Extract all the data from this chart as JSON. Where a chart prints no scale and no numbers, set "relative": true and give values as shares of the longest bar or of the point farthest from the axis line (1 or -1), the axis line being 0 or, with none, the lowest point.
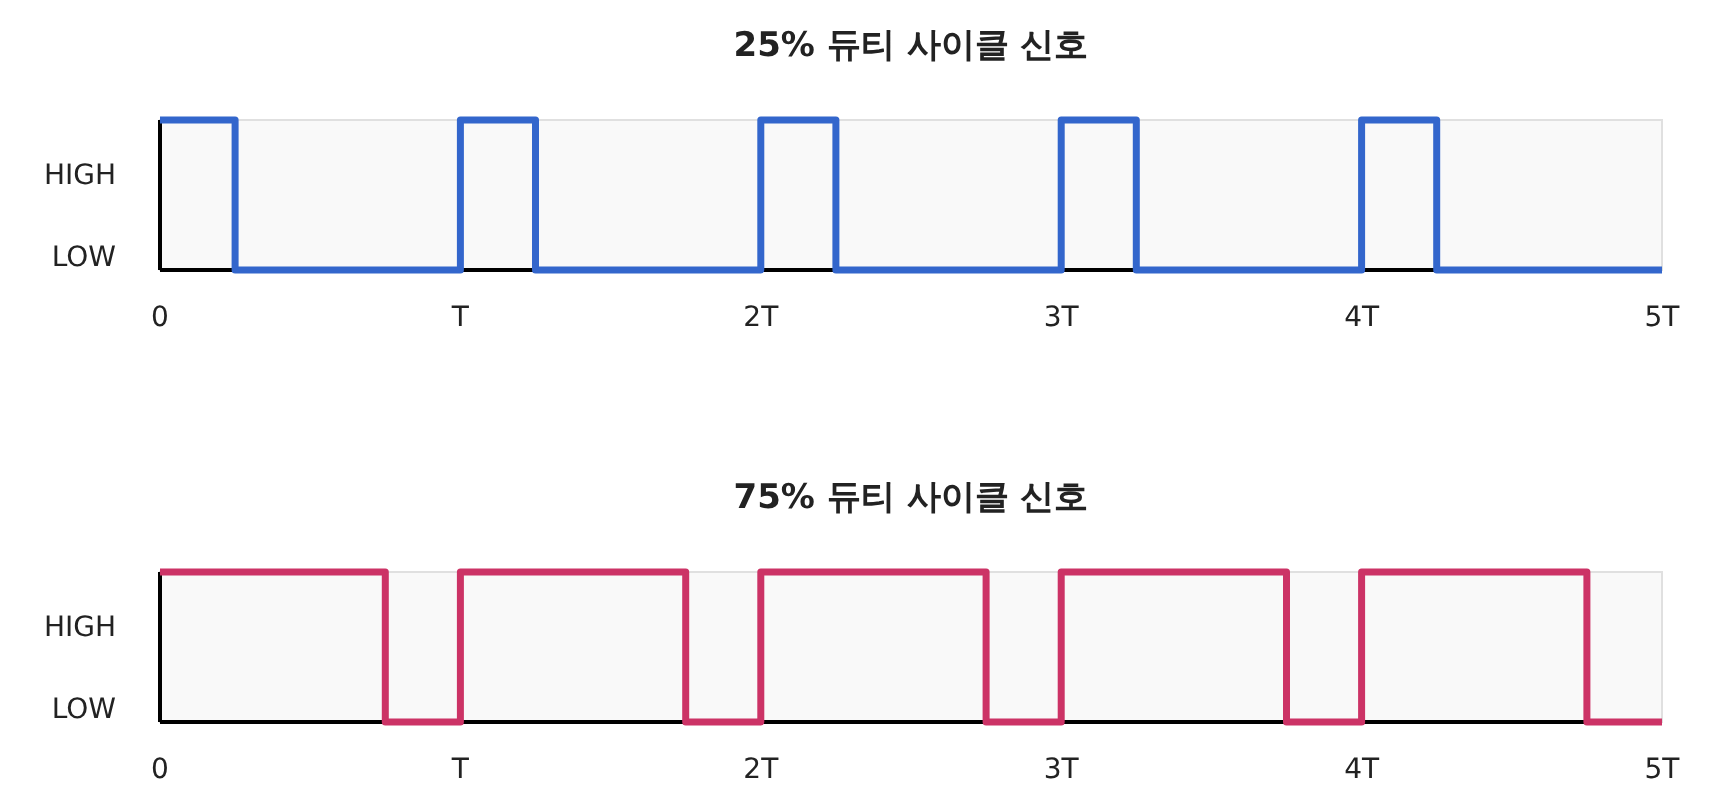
{
  "chart_data": [
    {
      "type": "step",
      "title": "25% 듀티 사이클 신호",
      "x": [
        0,
        0.25,
        1,
        1.25,
        2,
        2.25,
        3,
        3.25,
        4,
        4.25,
        5
      ],
      "values": [
        1,
        0,
        1,
        0,
        1,
        0,
        1,
        0,
        1,
        0,
        0
      ],
      "color": "#3366cc",
      "xlim": [
        0,
        5
      ],
      "relative": true,
      "xticks": [
        0,
        {
          "value": 1,
          "label": "T"
        },
        {
          "value": 2,
          "label": "2T"
        },
        {
          "value": 3,
          "label": "3T"
        },
        {
          "value": 4,
          "label": "4T"
        },
        {
          "value": 5,
          "label": "5T"
        }
      ],
      "annotations": [
        "HIGH",
        "LOW"
      ]
    },
    {
      "type": "step",
      "title": "75% 듀티 사이클 신호",
      "x": [
        0,
        0.75,
        1,
        1.75,
        2,
        2.75,
        3,
        3.75,
        4,
        4.75,
        5
      ],
      "values": [
        1,
        0,
        1,
        0,
        1,
        0,
        1,
        0,
        1,
        0,
        0
      ],
      "color": "#cc3366",
      "xlim": [
        0,
        5
      ],
      "relative": true,
      "xticks": [
        0,
        {
          "value": 1,
          "label": "T"
        },
        {
          "value": 2,
          "label": "2T"
        },
        {
          "value": 3,
          "label": "3T"
        },
        {
          "value": 4,
          "label": "4T"
        },
        {
          "value": 5,
          "label": "5T"
        }
      ],
      "annotations": [
        "HIGH",
        "LOW"
      ]
    }
  ]
}
